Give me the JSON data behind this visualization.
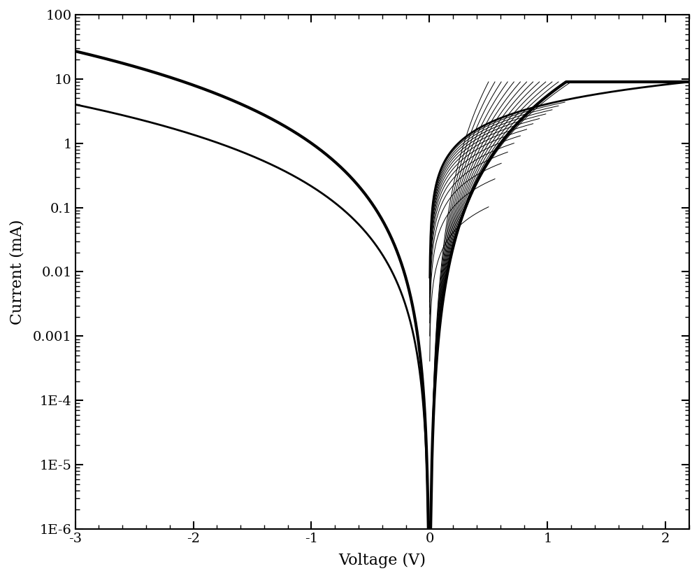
{
  "xlabel": "Voltage (V)",
  "ylabel": "Current (mA)",
  "xlim": [
    -3,
    2.2
  ],
  "ylim_log": [
    1e-06,
    100
  ],
  "yticks": [
    1e-06,
    1e-05,
    0.0001,
    0.001,
    0.01,
    0.1,
    1,
    10,
    100
  ],
  "ytick_labels": [
    "1E-6",
    "1E-5",
    "1E-4",
    "0.001",
    "0.01",
    "0.1",
    "1",
    "10",
    "100"
  ],
  "xticks": [
    -3,
    -2,
    -1,
    0,
    1,
    2
  ],
  "line_color": "#000000",
  "line_width": 2.0,
  "bg_color": "#ffffff",
  "xlabel_fontsize": 16,
  "ylabel_fontsize": 16,
  "tick_fontsize": 14
}
